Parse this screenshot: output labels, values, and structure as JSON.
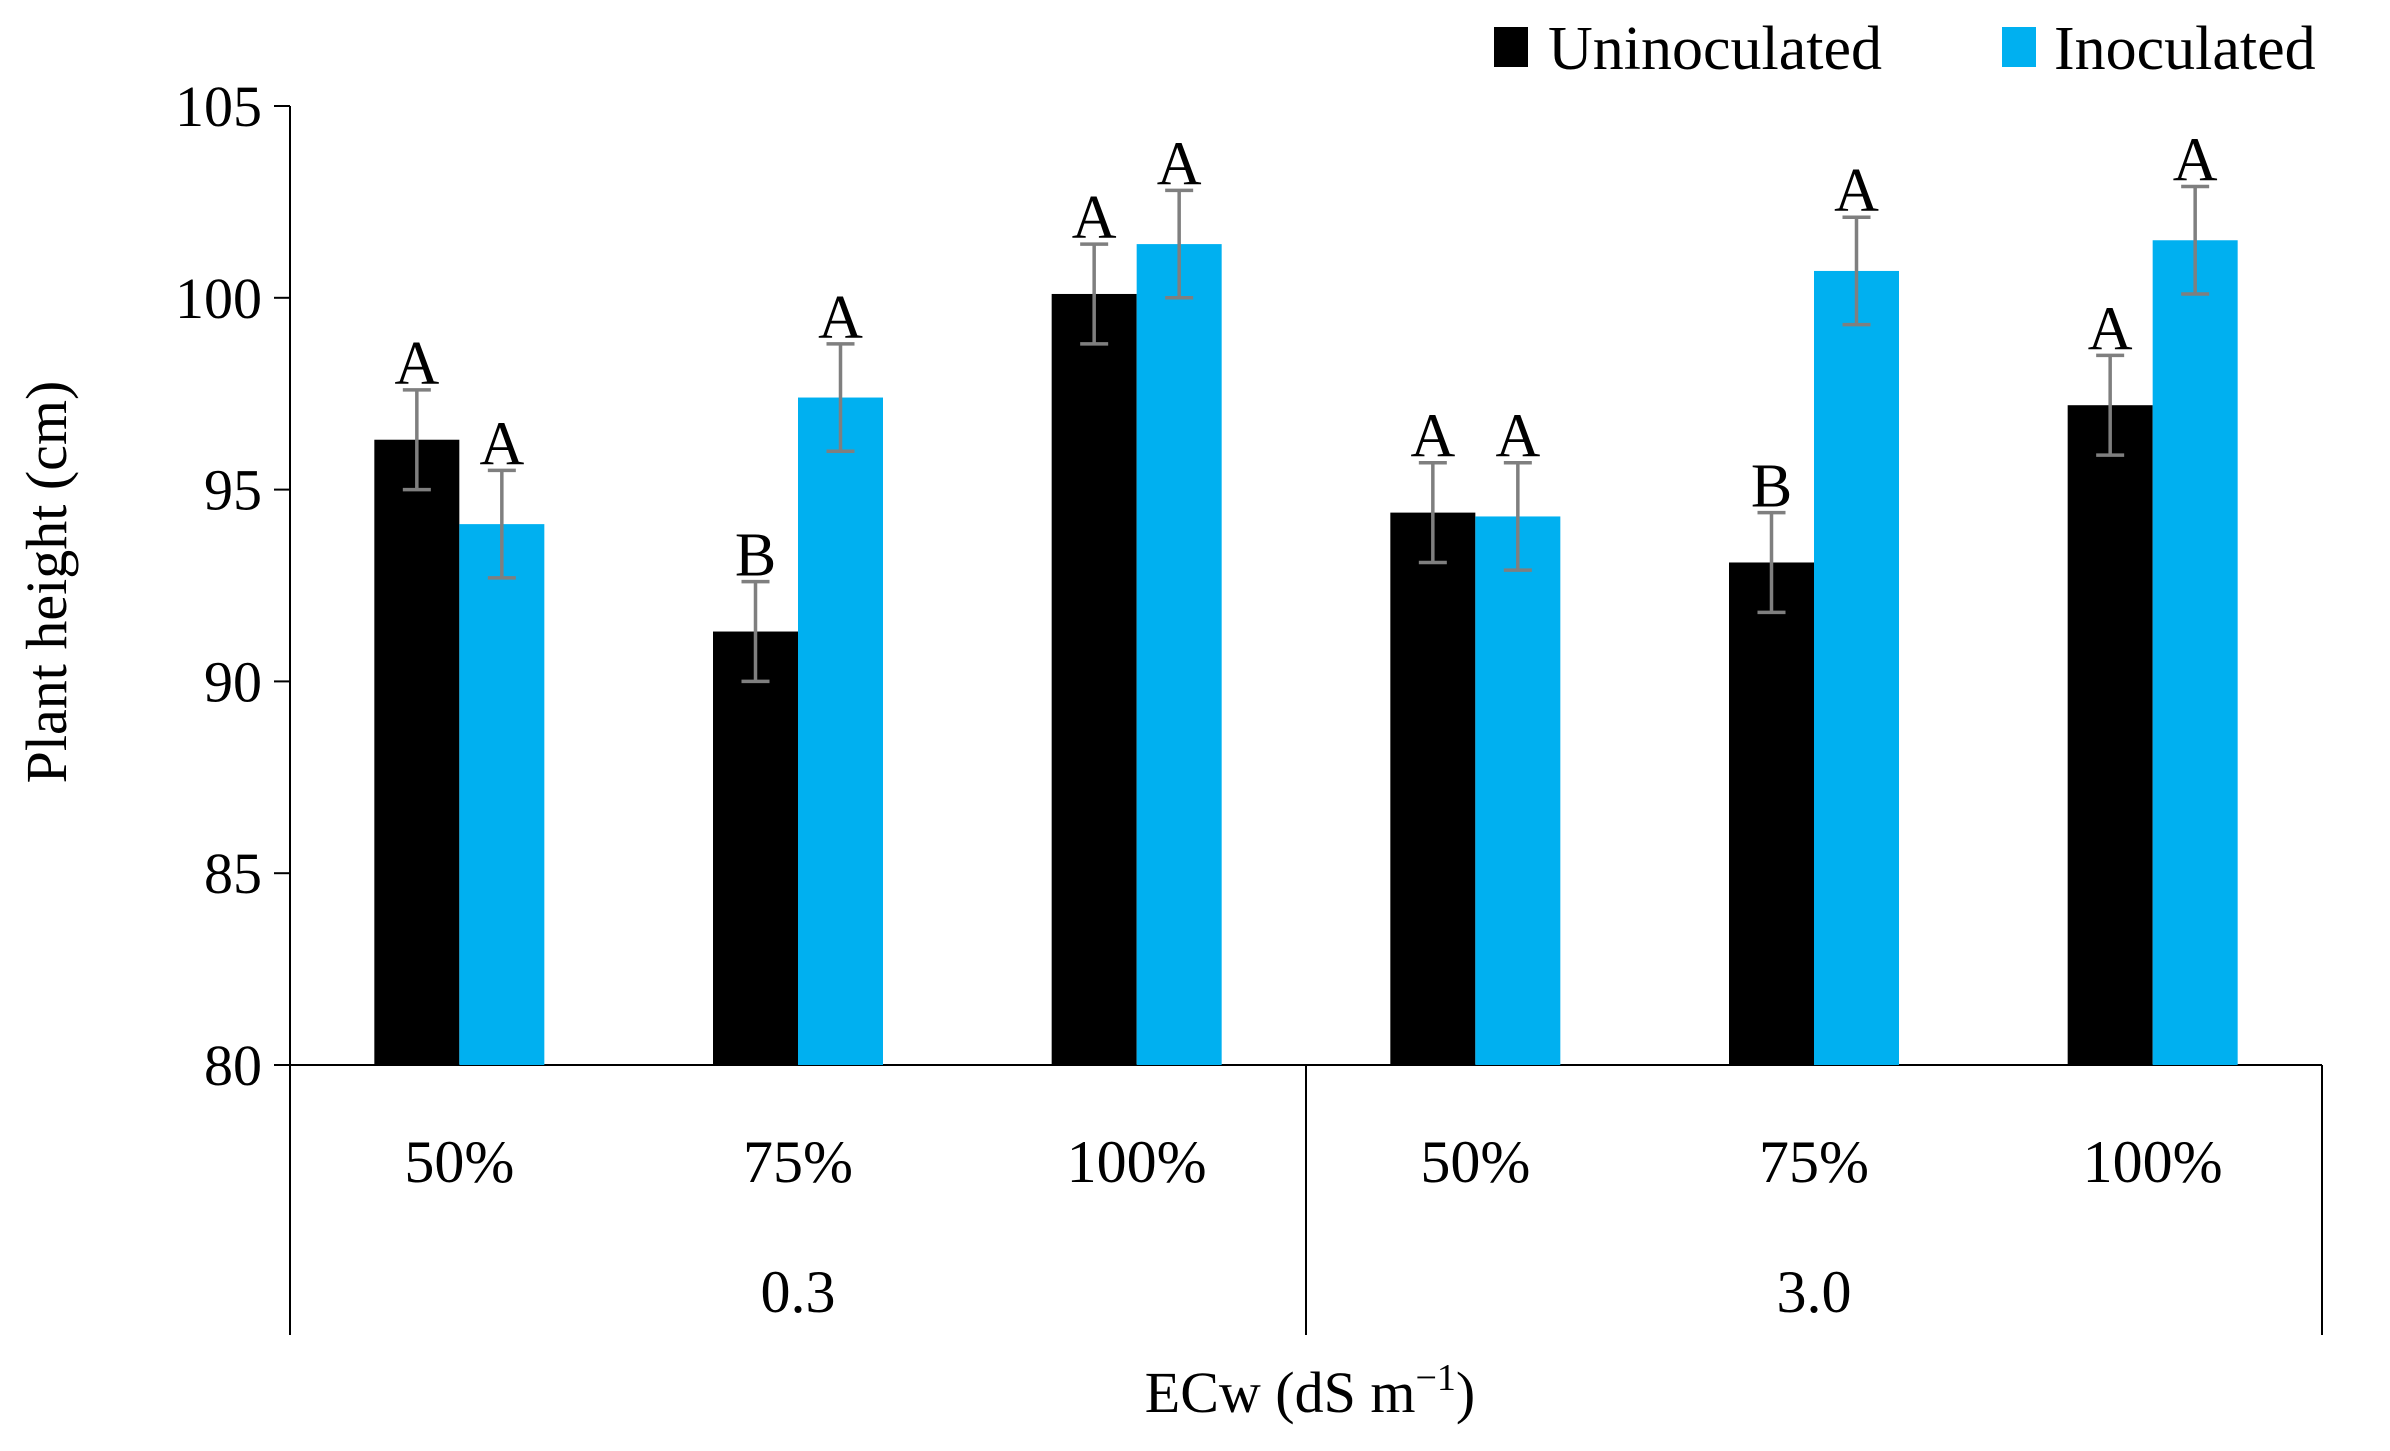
{
  "chart_data": {
    "type": "bar",
    "title": "",
    "ylabel": "Plant height (cm)",
    "xlabel_main": "ECw (dS m",
    "xlabel_sup": "−1",
    "xlabel_close": ")",
    "ylim": [
      80,
      105
    ],
    "yticks": [
      "80",
      "85",
      "90",
      "95",
      "100",
      "105"
    ],
    "categories": [
      "50%",
      "75%",
      "100%",
      "50%",
      "75%",
      "100%"
    ],
    "groups": [
      {
        "label": "0.3",
        "span": [
          0,
          2
        ]
      },
      {
        "label": "3.0",
        "span": [
          3,
          5
        ]
      }
    ],
    "series": [
      {
        "name": "Uninoculated",
        "color": "#000000",
        "values": [
          96.3,
          91.3,
          100.1,
          94.4,
          93.1,
          97.2
        ],
        "errors": [
          1.3,
          1.3,
          1.3,
          1.3,
          1.3,
          1.3
        ],
        "letters": [
          "A",
          "B",
          "A",
          "A",
          "B",
          "A"
        ]
      },
      {
        "name": "Inoculated",
        "color": "#00B0F0",
        "values": [
          94.1,
          97.4,
          101.4,
          94.3,
          100.7,
          101.5
        ],
        "errors": [
          1.4,
          1.4,
          1.4,
          1.4,
          1.4,
          1.4
        ],
        "letters": [
          "A",
          "A",
          "A",
          "A",
          "A",
          "A"
        ]
      }
    ],
    "error_bar_color": "#7F7F7F",
    "legend_position": "top-right",
    "grid": false
  }
}
